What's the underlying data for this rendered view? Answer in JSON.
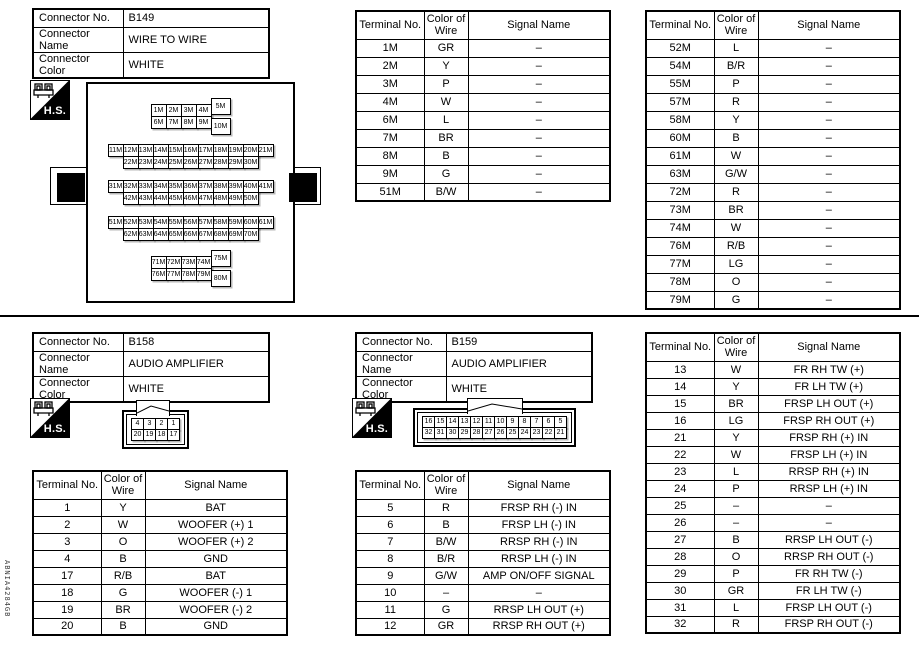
{
  "side_code": "ABNIA4284GB",
  "hs_label": "H.S.",
  "table_headers": {
    "terminal": "Terminal No.",
    "color": "Color of Wire",
    "signal": "Signal Name"
  },
  "connectors": {
    "b149": {
      "info": [
        [
          "Connector No.",
          "B149"
        ],
        [
          "Connector Name",
          "WIRE TO WIRE"
        ],
        [
          "Connector Color",
          "WHITE"
        ]
      ],
      "pins": {
        "g1": [
          [
            "1M",
            "2M",
            "3M",
            "4M"
          ],
          [
            "6M",
            "7M",
            "8M",
            "9M"
          ]
        ],
        "g1_right": [
          "5M",
          "10M"
        ],
        "g2": [
          [
            "11M",
            "12M",
            "13M",
            "14M",
            "15M",
            "16M",
            "17M",
            "18M",
            "19M",
            "20M",
            "21M"
          ],
          [
            "",
            "22M",
            "23M",
            "24M",
            "25M",
            "26M",
            "27M",
            "28M",
            "29M",
            "30M"
          ]
        ],
        "g3": [
          [
            "31M",
            "32M",
            "33M",
            "34M",
            "35M",
            "36M",
            "37M",
            "38M",
            "39M",
            "40M",
            "41M"
          ],
          [
            "",
            "42M",
            "43M",
            "44M",
            "45M",
            "46M",
            "47M",
            "48M",
            "49M",
            "50M"
          ]
        ],
        "g4": [
          [
            "51M",
            "52M",
            "53M",
            "54M",
            "55M",
            "56M",
            "57M",
            "58M",
            "59M",
            "60M",
            "61M"
          ],
          [
            "",
            "62M",
            "63M",
            "64M",
            "65M",
            "66M",
            "67M",
            "68M",
            "69M",
            "70M"
          ]
        ],
        "g5": [
          [
            "71M",
            "72M",
            "73M",
            "74M"
          ],
          [
            "76M",
            "77M",
            "78M",
            "79M"
          ]
        ],
        "g5_right": [
          "75M",
          "80M"
        ]
      }
    },
    "b158": {
      "info": [
        [
          "Connector No.",
          "B158"
        ],
        [
          "Connector Name",
          "AUDIO AMPLIFIER"
        ],
        [
          "Connector Color",
          "WHITE"
        ]
      ],
      "pins": [
        [
          "4",
          "3",
          "2",
          "1"
        ],
        [
          "20",
          "19",
          "18",
          "17"
        ]
      ]
    },
    "b159": {
      "info": [
        [
          "Connector No.",
          "B159"
        ],
        [
          "Connector Name",
          "AUDIO AMPLIFIER"
        ],
        [
          "Connector Color",
          "WHITE"
        ]
      ],
      "pins": [
        [
          "16",
          "15",
          "14",
          "13",
          "12",
          "11",
          "10",
          "9",
          "8",
          "7",
          "6",
          "5"
        ],
        [
          "32",
          "31",
          "30",
          "29",
          "28",
          "27",
          "26",
          "25",
          "24",
          "23",
          "22",
          "21"
        ]
      ]
    }
  },
  "tables": {
    "b149_a": {
      "rows": [
        [
          "1M",
          "GR",
          "–"
        ],
        [
          "2M",
          "Y",
          "–"
        ],
        [
          "3M",
          "P",
          "–"
        ],
        [
          "4M",
          "W",
          "–"
        ],
        [
          "6M",
          "L",
          "–"
        ],
        [
          "7M",
          "BR",
          "–"
        ],
        [
          "8M",
          "B",
          "–"
        ],
        [
          "9M",
          "G",
          "–"
        ],
        [
          "51M",
          "B/W",
          "–"
        ]
      ]
    },
    "b149_b": {
      "rows": [
        [
          "52M",
          "L",
          "–"
        ],
        [
          "54M",
          "B/R",
          "–"
        ],
        [
          "55M",
          "P",
          "–"
        ],
        [
          "57M",
          "R",
          "–"
        ],
        [
          "58M",
          "Y",
          "–"
        ],
        [
          "60M",
          "B",
          "–"
        ],
        [
          "61M",
          "W",
          "–"
        ],
        [
          "63M",
          "G/W",
          "–"
        ],
        [
          "72M",
          "R",
          "–"
        ],
        [
          "73M",
          "BR",
          "–"
        ],
        [
          "74M",
          "W",
          "–"
        ],
        [
          "76M",
          "R/B",
          "–"
        ],
        [
          "77M",
          "LG",
          "–"
        ],
        [
          "78M",
          "O",
          "–"
        ],
        [
          "79M",
          "G",
          "–"
        ]
      ]
    },
    "b158": {
      "rows": [
        [
          "1",
          "Y",
          "BAT"
        ],
        [
          "2",
          "W",
          "WOOFER (+) 1"
        ],
        [
          "3",
          "O",
          "WOOFER (+) 2"
        ],
        [
          "4",
          "B",
          "GND"
        ],
        [
          "17",
          "R/B",
          "BAT"
        ],
        [
          "18",
          "G",
          "WOOFER (-) 1"
        ],
        [
          "19",
          "BR",
          "WOOFER (-) 2"
        ],
        [
          "20",
          "B",
          "GND"
        ]
      ]
    },
    "b159_a": {
      "rows": [
        [
          "5",
          "R",
          "FRSP RH (-) IN"
        ],
        [
          "6",
          "B",
          "FRSP LH (-) IN"
        ],
        [
          "7",
          "B/W",
          "RRSP RH (-) IN"
        ],
        [
          "8",
          "B/R",
          "RRSP LH (-) IN"
        ],
        [
          "9",
          "G/W",
          "AMP ON/OFF SIGNAL"
        ],
        [
          "10",
          "–",
          "–"
        ],
        [
          "11",
          "G",
          "RRSP LH OUT (+)"
        ],
        [
          "12",
          "GR",
          "RRSP RH OUT (+)"
        ]
      ]
    },
    "b159_b": {
      "rows": [
        [
          "13",
          "W",
          "FR RH TW (+)"
        ],
        [
          "14",
          "Y",
          "FR LH TW (+)"
        ],
        [
          "15",
          "BR",
          "FRSP LH OUT (+)"
        ],
        [
          "16",
          "LG",
          "FRSP RH OUT (+)"
        ],
        [
          "21",
          "Y",
          "FRSP RH (+) IN"
        ],
        [
          "22",
          "W",
          "FRSP LH (+) IN"
        ],
        [
          "23",
          "L",
          "RRSP RH (+) IN"
        ],
        [
          "24",
          "P",
          "RRSP LH (+) IN"
        ],
        [
          "25",
          "–",
          "–"
        ],
        [
          "26",
          "–",
          "–"
        ],
        [
          "27",
          "B",
          "RRSP LH OUT (-)"
        ],
        [
          "28",
          "O",
          "RRSP RH OUT (-)"
        ],
        [
          "29",
          "P",
          "FR RH TW (-)"
        ],
        [
          "30",
          "GR",
          "FR LH TW (-)"
        ],
        [
          "31",
          "L",
          "FRSP LH OUT (-)"
        ],
        [
          "32",
          "R",
          "FRSP RH OUT (-)"
        ]
      ]
    }
  }
}
